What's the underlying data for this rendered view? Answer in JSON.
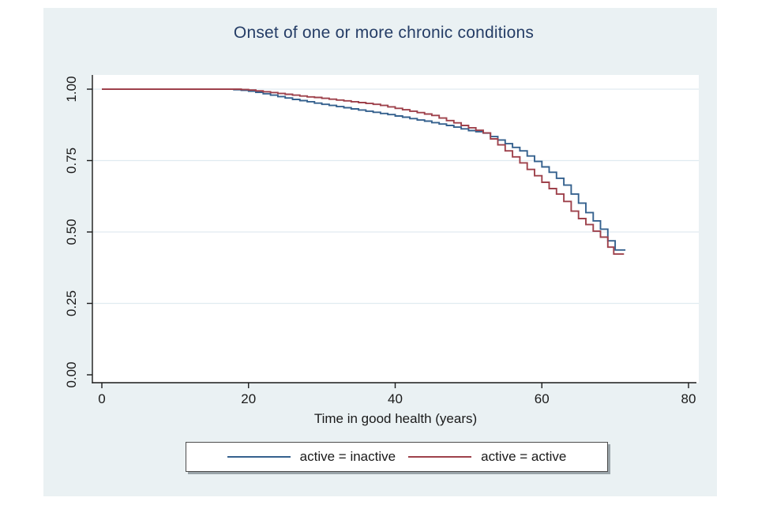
{
  "figure": {
    "title": "Onset of one or more chronic conditions",
    "x_axis_title": "Time in good health (years)"
  },
  "colors": {
    "outer_background": "#eaf1f3",
    "plot_background": "#ffffff",
    "gridline": "#e0ebf0",
    "axis": "#1a1a1a",
    "title_text": "#253d66",
    "series_inactive": "#35618e",
    "series_active": "#9e414b",
    "legend_border": "#4d4d4d",
    "legend_shadow": "#99a3a8"
  },
  "chart_data": {
    "type": "line",
    "subtype": "kaplan-meier-step",
    "title": "Onset of one or more chronic conditions",
    "xlabel": "Time in good health (years)",
    "ylabel": "",
    "xlim": [
      0,
      80
    ],
    "ylim": [
      0,
      1
    ],
    "xticks": [
      "0",
      "20",
      "40",
      "60",
      "80"
    ],
    "yticks": [
      "0.00",
      "0.25",
      "0.50",
      "0.75",
      "1.00"
    ],
    "grid": "horizontal",
    "legend_position": "bottom",
    "series": [
      {
        "name": "active = inactive",
        "color": "#35618e",
        "points": [
          [
            0,
            1.0
          ],
          [
            18,
            0.998
          ],
          [
            19,
            0.996
          ],
          [
            20,
            0.993
          ],
          [
            21,
            0.989
          ],
          [
            22,
            0.984
          ],
          [
            23,
            0.979
          ],
          [
            24,
            0.974
          ],
          [
            25,
            0.969
          ],
          [
            26,
            0.964
          ],
          [
            27,
            0.96
          ],
          [
            28,
            0.956
          ],
          [
            29,
            0.951
          ],
          [
            30,
            0.947
          ],
          [
            31,
            0.943
          ],
          [
            32,
            0.939
          ],
          [
            33,
            0.935
          ],
          [
            34,
            0.931
          ],
          [
            35,
            0.927
          ],
          [
            36,
            0.923
          ],
          [
            37,
            0.919
          ],
          [
            38,
            0.915
          ],
          [
            39,
            0.911
          ],
          [
            40,
            0.906
          ],
          [
            41,
            0.902
          ],
          [
            42,
            0.897
          ],
          [
            43,
            0.892
          ],
          [
            44,
            0.888
          ],
          [
            45,
            0.883
          ],
          [
            46,
            0.878
          ],
          [
            47,
            0.873
          ],
          [
            48,
            0.867
          ],
          [
            49,
            0.861
          ],
          [
            50,
            0.855
          ],
          [
            51,
            0.851
          ],
          [
            52,
            0.846
          ],
          [
            53,
            0.834
          ],
          [
            54,
            0.822
          ],
          [
            55,
            0.809
          ],
          [
            56,
            0.796
          ],
          [
            57,
            0.784
          ],
          [
            58,
            0.766
          ],
          [
            59,
            0.747
          ],
          [
            60,
            0.728
          ],
          [
            61,
            0.709
          ],
          [
            62,
            0.688
          ],
          [
            63,
            0.664
          ],
          [
            64,
            0.633
          ],
          [
            65,
            0.601
          ],
          [
            66,
            0.568
          ],
          [
            67,
            0.539
          ],
          [
            68,
            0.51
          ],
          [
            69,
            0.469
          ],
          [
            70,
            0.437
          ],
          [
            71.4,
            0.437
          ]
        ]
      },
      {
        "name": "active = active",
        "color": "#9e414b",
        "points": [
          [
            0,
            1.0
          ],
          [
            19,
            0.999
          ],
          [
            20,
            0.997
          ],
          [
            21,
            0.994
          ],
          [
            22,
            0.991
          ],
          [
            23,
            0.988
          ],
          [
            24,
            0.985
          ],
          [
            25,
            0.982
          ],
          [
            26,
            0.979
          ],
          [
            27,
            0.976
          ],
          [
            28,
            0.973
          ],
          [
            29,
            0.971
          ],
          [
            30,
            0.968
          ],
          [
            31,
            0.965
          ],
          [
            32,
            0.962
          ],
          [
            33,
            0.959
          ],
          [
            34,
            0.956
          ],
          [
            35,
            0.953
          ],
          [
            36,
            0.95
          ],
          [
            37,
            0.947
          ],
          [
            38,
            0.943
          ],
          [
            39,
            0.938
          ],
          [
            40,
            0.933
          ],
          [
            41,
            0.928
          ],
          [
            42,
            0.923
          ],
          [
            43,
            0.918
          ],
          [
            44,
            0.913
          ],
          [
            45,
            0.908
          ],
          [
            46,
            0.899
          ],
          [
            47,
            0.89
          ],
          [
            48,
            0.882
          ],
          [
            49,
            0.873
          ],
          [
            50,
            0.865
          ],
          [
            51,
            0.856
          ],
          [
            52,
            0.847
          ],
          [
            53,
            0.826
          ],
          [
            54,
            0.805
          ],
          [
            55,
            0.784
          ],
          [
            56,
            0.763
          ],
          [
            57,
            0.742
          ],
          [
            58,
            0.719
          ],
          [
            59,
            0.697
          ],
          [
            60,
            0.674
          ],
          [
            61,
            0.652
          ],
          [
            62,
            0.633
          ],
          [
            63,
            0.607
          ],
          [
            64,
            0.573
          ],
          [
            65,
            0.547
          ],
          [
            66,
            0.526
          ],
          [
            67,
            0.503
          ],
          [
            68,
            0.482
          ],
          [
            69,
            0.447
          ],
          [
            69.8,
            0.423
          ],
          [
            71.2,
            0.423
          ]
        ]
      }
    ]
  }
}
